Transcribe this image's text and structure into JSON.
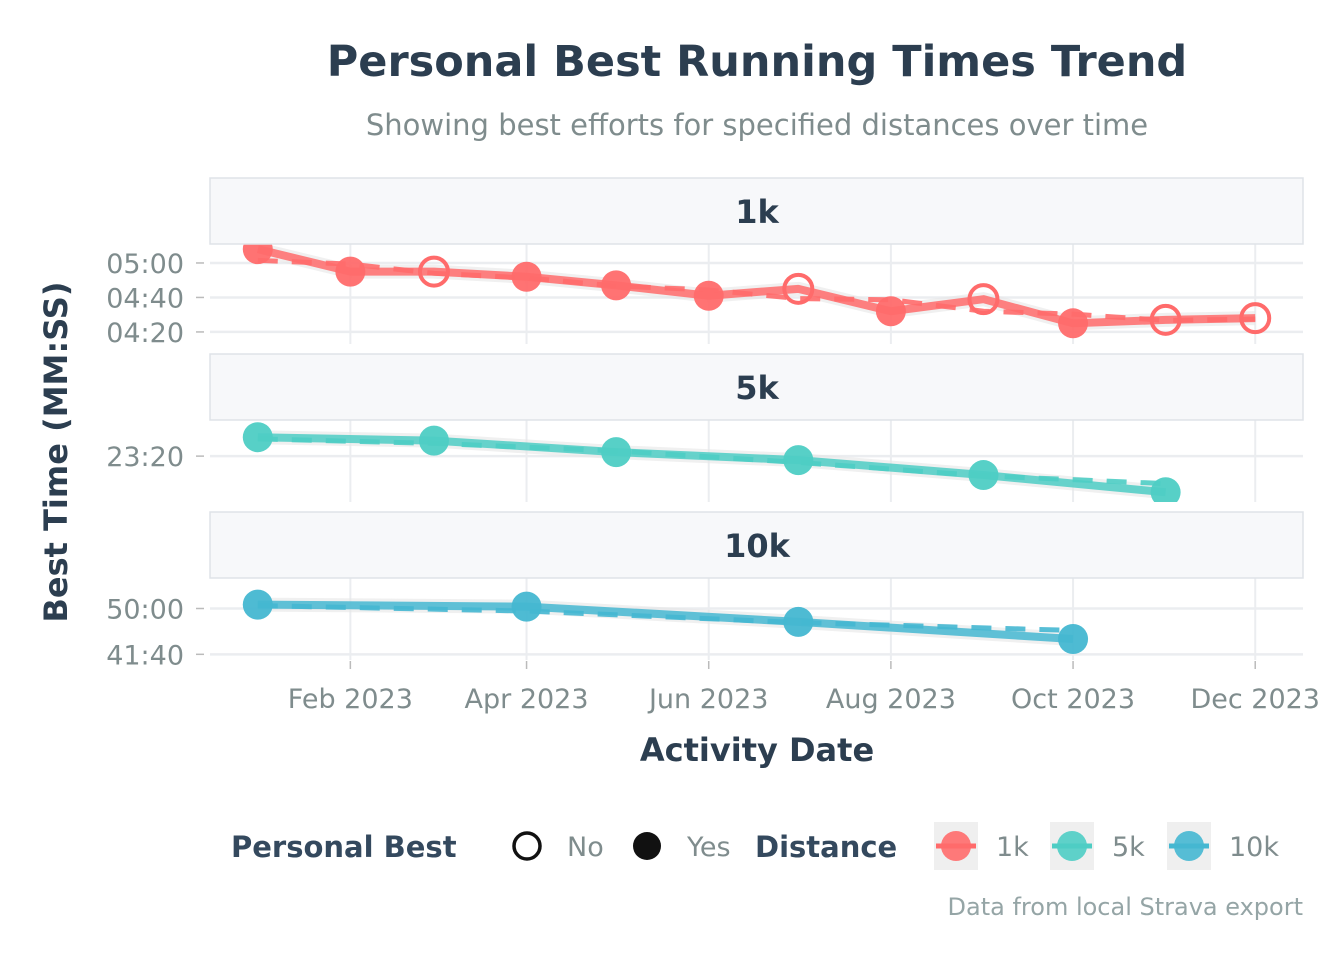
{
  "chart_data": {
    "type": "line",
    "title": "Personal Best Running Times Trend",
    "subtitle": "Showing best efforts for specified distances over time",
    "xlabel": "Activity Date",
    "ylabel": "Best Time (MM:SS)",
    "caption": "Data from local Strava export",
    "xlim": [
      "2022-12-16",
      "2023-12-17"
    ],
    "x_ticks": [
      {
        "date": "2023-02-01",
        "label": "Feb 2023"
      },
      {
        "date": "2023-04-01",
        "label": "Apr 2023"
      },
      {
        "date": "2023-06-01",
        "label": "Jun 2023"
      },
      {
        "date": "2023-08-01",
        "label": "Aug 2023"
      },
      {
        "date": "2023-10-01",
        "label": "Oct 2023"
      },
      {
        "date": "2023-12-01",
        "label": "Dec 2023"
      }
    ],
    "grid": true,
    "facets": "rows, free y scale",
    "trend_line": "dashed smoothed",
    "panels": [
      {
        "name": "1k",
        "color": "#FF6B6B",
        "ylim": [
          "04:13",
          "05:11"
        ],
        "y_ticks": [
          "04:20",
          "04:40",
          "05:00"
        ],
        "points": [
          {
            "date": "2023-01-01",
            "time": "05:08",
            "pb": "Yes"
          },
          {
            "date": "2023-02-01",
            "time": "04:55",
            "pb": "Yes"
          },
          {
            "date": "2023-03-01",
            "time": "04:55",
            "pb": "No"
          },
          {
            "date": "2023-04-01",
            "time": "04:52",
            "pb": "Yes"
          },
          {
            "date": "2023-05-01",
            "time": "04:47",
            "pb": "Yes"
          },
          {
            "date": "2023-06-01",
            "time": "04:41",
            "pb": "Yes"
          },
          {
            "date": "2023-07-01",
            "time": "04:45",
            "pb": "No"
          },
          {
            "date": "2023-08-01",
            "time": "04:32",
            "pb": "Yes"
          },
          {
            "date": "2023-09-01",
            "time": "04:39",
            "pb": "No"
          },
          {
            "date": "2023-10-01",
            "time": "04:25",
            "pb": "Yes"
          },
          {
            "date": "2023-11-01",
            "time": "04:27",
            "pb": "No"
          },
          {
            "date": "2023-12-01",
            "time": "04:28",
            "pb": "No"
          }
        ]
      },
      {
        "name": "5k",
        "color": "#4ECDC4",
        "ylim": [
          "22:00",
          "24:23"
        ],
        "y_ticks": [
          "23:20"
        ],
        "points": [
          {
            "date": "2023-01-01",
            "time": "23:53",
            "pb": "Yes"
          },
          {
            "date": "2023-03-01",
            "time": "23:47",
            "pb": "Yes"
          },
          {
            "date": "2023-05-01",
            "time": "23:27",
            "pb": "Yes"
          },
          {
            "date": "2023-07-01",
            "time": "23:13",
            "pb": "Yes"
          },
          {
            "date": "2023-09-01",
            "time": "22:47",
            "pb": "Yes"
          },
          {
            "date": "2023-11-01",
            "time": "22:17",
            "pb": "Yes"
          }
        ]
      },
      {
        "name": "10k",
        "color": "#45B7D1",
        "ylim": [
          "40:38",
          "55:33"
        ],
        "y_ticks": [
          "41:40",
          "50:00"
        ],
        "points": [
          {
            "date": "2023-01-01",
            "time": "50:42",
            "pb": "Yes"
          },
          {
            "date": "2023-04-01",
            "time": "50:21",
            "pb": "Yes"
          },
          {
            "date": "2023-07-01",
            "time": "47:34",
            "pb": "Yes"
          },
          {
            "date": "2023-10-01",
            "time": "44:27",
            "pb": "Yes"
          }
        ]
      }
    ],
    "legend": {
      "placement": "bottom",
      "pb_title": "Personal Best",
      "pb_items": [
        {
          "label": "No",
          "filled": false
        },
        {
          "label": "Yes",
          "filled": true
        }
      ],
      "distance_title": "Distance",
      "distance_items": [
        {
          "label": "1k",
          "color": "#FF6B6B"
        },
        {
          "label": "5k",
          "color": "#4ECDC4"
        },
        {
          "label": "10k",
          "color": "#45B7D1"
        }
      ]
    }
  }
}
